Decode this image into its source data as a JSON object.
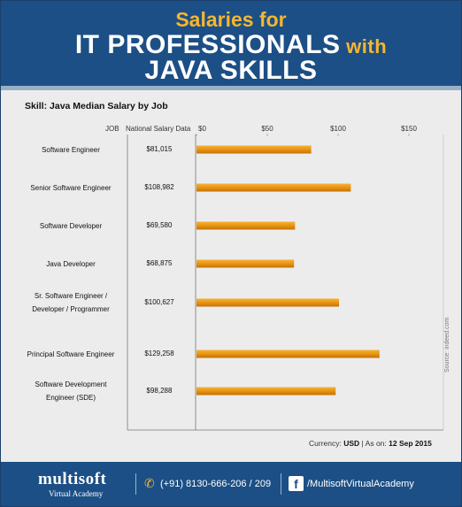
{
  "header": {
    "line1": "Salaries for",
    "line2_main": "IT PROFESSIONALS",
    "line2_small": " with",
    "line3": "JAVA SKILLS"
  },
  "chart_data": {
    "type": "bar",
    "orientation": "horizontal",
    "title": "Skill: Java Median Salary by Job",
    "column_headers": [
      "JOB",
      "National Salary Data"
    ],
    "categories": [
      [
        "Software Engineer"
      ],
      [
        "Senior Software Engineer"
      ],
      [
        "Software Developer"
      ],
      [
        "Java Developer"
      ],
      [
        "Sr. Software Engineer /",
        "Developer / Programmer"
      ],
      [
        "Principal Software Engineer"
      ],
      [
        "Software Development",
        "Engineer (SDE)"
      ]
    ],
    "value_labels": [
      "$81,015",
      "$108,982",
      "$69,580",
      "$68,875",
      "$100,627",
      "$129,258",
      "$98,288"
    ],
    "values": [
      81015,
      108982,
      69580,
      68875,
      100627,
      129258,
      98288
    ],
    "xlim": [
      0,
      150000
    ],
    "ticks": [
      0,
      50000,
      100000,
      150000
    ],
    "tick_labels": [
      "$0",
      "$50",
      "$100",
      "$150"
    ],
    "grid": false,
    "bar_color": "#e8940f",
    "source": "Source: indeed.com"
  },
  "currency": {
    "label": "Currency:",
    "value": "USD",
    "sep": "|",
    "ason_label": "As on:",
    "date": "12 Sep 2015"
  },
  "footer": {
    "logo": "multisoft",
    "logo_sub": "Virtual Academy",
    "phone_icon": "phone-icon",
    "phone": "(+91) 8130-666-206 / 209",
    "facebook_icon": "facebook-icon",
    "facebook": "/MultisoftVirtualAcademy"
  },
  "colors": {
    "header_bg": "#1c4f85",
    "accent": "#f6b630",
    "bar": "#e8940f"
  }
}
